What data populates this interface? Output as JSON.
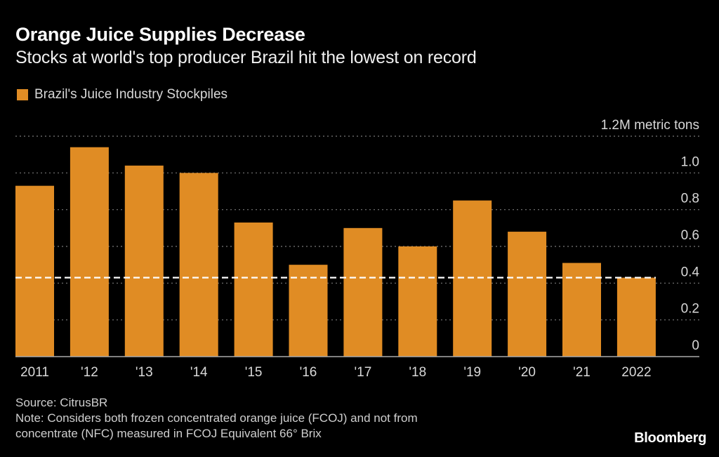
{
  "chart_data": {
    "type": "bar",
    "title": "Orange Juice Supplies Decrease",
    "subtitle": "Stocks at world's top producer Brazil hit the lowest on record",
    "legend": [
      {
        "name": "Brazil's Juice Industry Stockpiles",
        "color": "#e08c24"
      }
    ],
    "legend_position": "top-left",
    "categories": [
      "2011",
      "'12",
      "'13",
      "'14",
      "'15",
      "'16",
      "'17",
      "'18",
      "'19",
      "'20",
      "'21",
      "2022"
    ],
    "series": [
      {
        "name": "Brazil's Juice Industry Stockpiles",
        "values": [
          0.93,
          1.14,
          1.04,
          1.0,
          0.73,
          0.5,
          0.7,
          0.6,
          0.85,
          0.68,
          0.51,
          0.43
        ]
      }
    ],
    "reference_line": {
      "value": 0.43,
      "style": "dashed",
      "color": "#ffffff"
    },
    "ylabel": "",
    "y_unit_label": "1.2M metric tons",
    "yticks": [
      0,
      0.2,
      0.4,
      0.6,
      0.8,
      1.0,
      1.2
    ],
    "ytick_labels": [
      "0",
      "0.2",
      "0.4",
      "0.6",
      "0.8",
      "1.0",
      "1.2M metric tons"
    ],
    "ylim": [
      0,
      1.2
    ],
    "y_axis_side": "right",
    "grid": true,
    "xlabel": ""
  },
  "footer": {
    "source": "Source: CitrusBR",
    "note_line1": "Note: Considers both frozen concentrated orange juice (FCOJ) and not from",
    "note_line2": "concentrate (NFC) measured in FCOJ Equivalent 66° Brix"
  },
  "brand": "Bloomberg",
  "colors": {
    "bar": "#e08c24",
    "grid": "#7a7a7a",
    "axis": "#aaaaaa",
    "reference": "#ffffff"
  }
}
